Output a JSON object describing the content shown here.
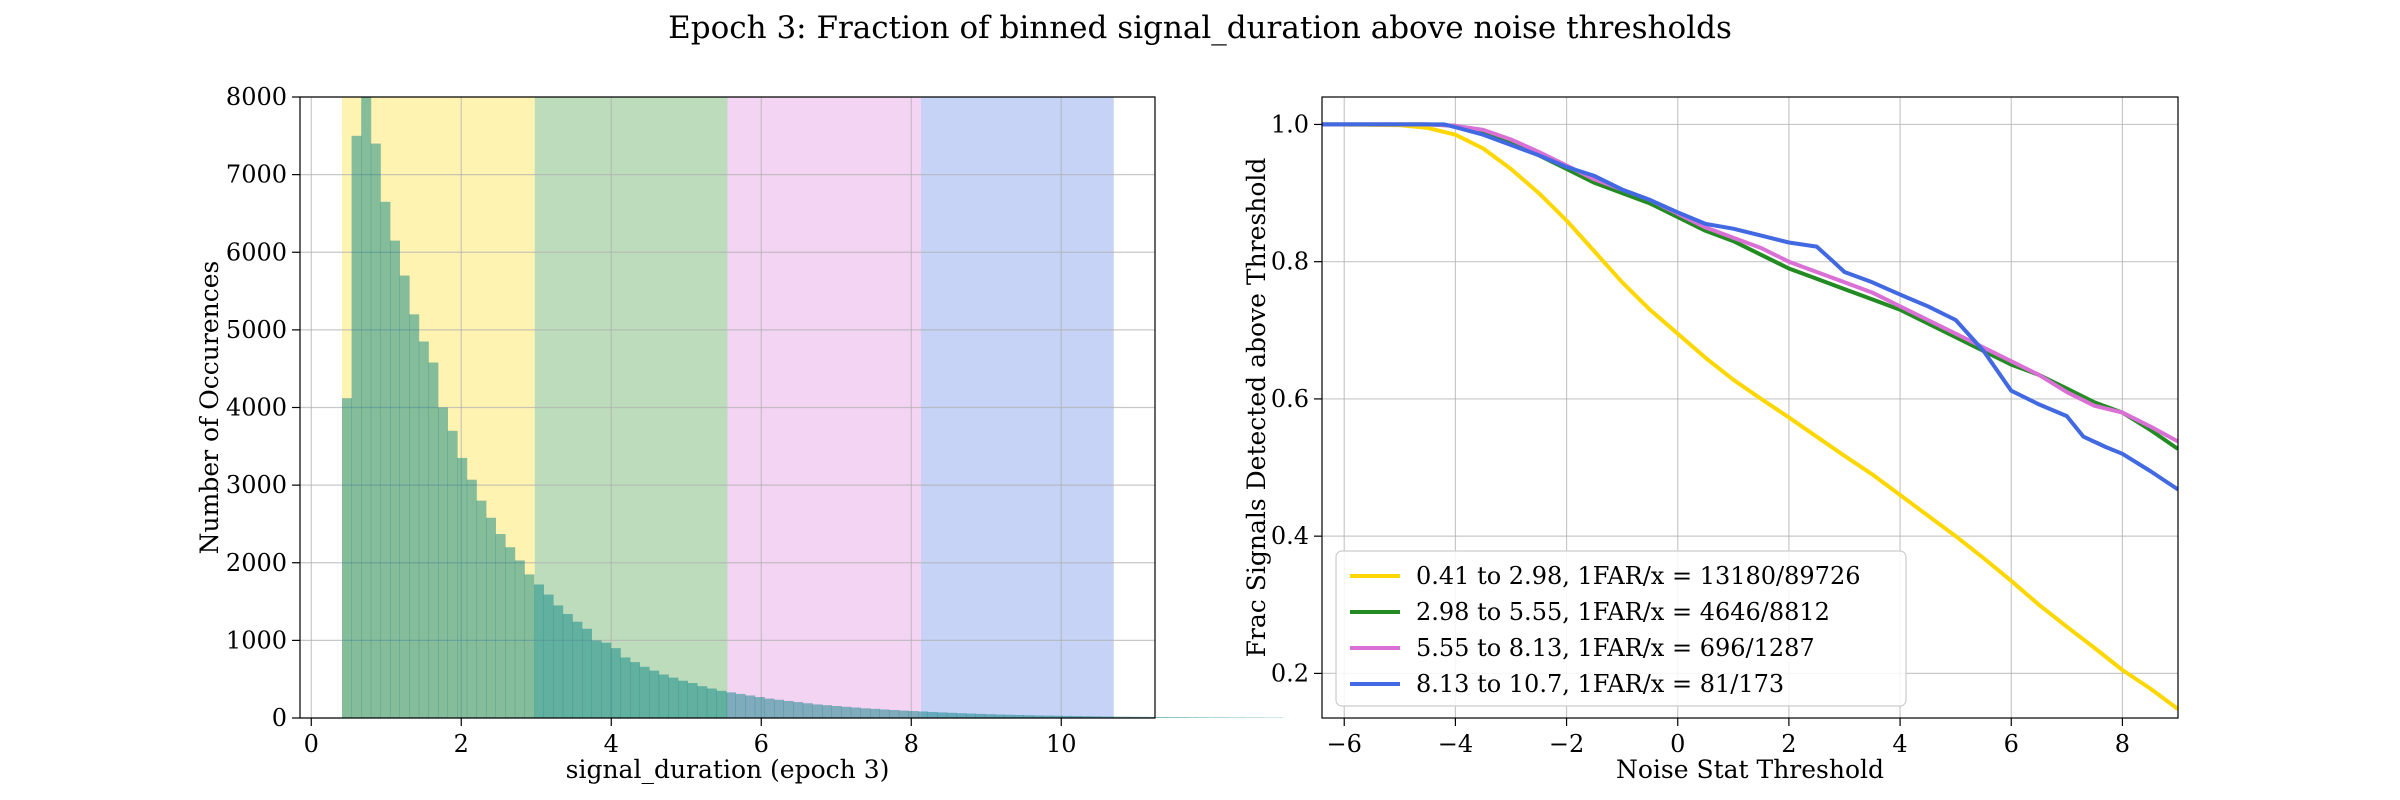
{
  "figure": {
    "title": "Epoch 3: Fraction of binned signal_duration above noise thresholds"
  },
  "chart_data": [
    {
      "type": "bar",
      "subtype": "histogram",
      "xlabel": "signal_duration (epoch 3)",
      "ylabel": "Number of Occurences",
      "xlim": [
        -0.15,
        11.25
      ],
      "ylim": [
        0,
        8000
      ],
      "xticks": [
        "0",
        "2",
        "4",
        "6",
        "8",
        "10"
      ],
      "yticks": [
        "0",
        "1000",
        "2000",
        "3000",
        "4000",
        "5000",
        "6000",
        "7000",
        "8000"
      ],
      "grid": true,
      "bins": {
        "start": 0.41,
        "width": 0.128,
        "counts": [
          4120,
          7500,
          8050,
          7400,
          6650,
          6150,
          5700,
          5200,
          4850,
          4580,
          4000,
          3700,
          3350,
          3070,
          2800,
          2580,
          2370,
          2200,
          2030,
          1850,
          1720,
          1590,
          1450,
          1340,
          1240,
          1150,
          1000,
          970,
          900,
          780,
          720,
          660,
          610,
          560,
          520,
          480,
          450,
          410,
          380,
          350,
          330,
          310,
          290,
          270,
          250,
          235,
          220,
          205,
          190,
          175,
          165,
          155,
          145,
          135,
          125,
          118,
          110,
          103,
          96,
          90,
          84,
          78,
          72,
          67,
          62,
          57,
          53,
          49,
          45,
          42,
          39,
          36,
          33,
          31,
          29,
          27,
          25,
          23,
          21,
          19,
          18,
          17,
          16,
          15,
          14,
          13,
          12,
          11,
          10,
          9,
          8,
          8,
          7,
          7,
          6,
          6,
          5,
          5
        ]
      },
      "bands": [
        {
          "from": 0.41,
          "to": 2.98,
          "color": "#ffd700"
        },
        {
          "from": 2.98,
          "to": 5.55,
          "color": "#228b22"
        },
        {
          "from": 5.55,
          "to": 8.13,
          "color": "#da70d6"
        },
        {
          "from": 8.13,
          "to": 10.7,
          "color": "#4169e1"
        }
      ]
    },
    {
      "type": "line",
      "xlabel": "Noise Stat Threshold",
      "ylabel": "Frac Signals Detected above Threshold",
      "xlim": [
        -6.4,
        9
      ],
      "ylim": [
        0.135,
        1.04
      ],
      "xticks": [
        -6,
        -4,
        -2,
        0,
        2,
        4,
        6,
        8
      ],
      "yticks": [
        "0.2",
        "0.4",
        "0.6",
        "0.8",
        "1.0"
      ],
      "grid": true,
      "legend_position": "lower-left",
      "series": [
        {
          "name": "0.41 to 2.98, 1FAR/x = 13180/89726",
          "color": "#ffd700",
          "points": [
            [
              -6.4,
              1.0
            ],
            [
              -5,
              0.999
            ],
            [
              -4.5,
              0.995
            ],
            [
              -4,
              0.985
            ],
            [
              -3.5,
              0.965
            ],
            [
              -3,
              0.935
            ],
            [
              -2.5,
              0.9
            ],
            [
              -2,
              0.86
            ],
            [
              -1.5,
              0.815
            ],
            [
              -1,
              0.77
            ],
            [
              -0.5,
              0.73
            ],
            [
              0,
              0.695
            ],
            [
              0.5,
              0.66
            ],
            [
              1,
              0.628
            ],
            [
              1.5,
              0.6
            ],
            [
              2,
              0.573
            ],
            [
              2.5,
              0.545
            ],
            [
              3,
              0.517
            ],
            [
              3.5,
              0.49
            ],
            [
              4,
              0.46
            ],
            [
              4.5,
              0.43
            ],
            [
              5,
              0.4
            ],
            [
              5.5,
              0.368
            ],
            [
              6,
              0.335
            ],
            [
              6.5,
              0.3
            ],
            [
              7,
              0.268
            ],
            [
              7.5,
              0.237
            ],
            [
              8,
              0.205
            ],
            [
              8.5,
              0.178
            ],
            [
              9,
              0.148
            ]
          ]
        },
        {
          "name": "2.98 to 5.55, 1FAR/x = 4646/8812",
          "color": "#228b22",
          "points": [
            [
              -6.4,
              1.0
            ],
            [
              -4.5,
              1.0
            ],
            [
              -4,
              0.998
            ],
            [
              -3.5,
              0.99
            ],
            [
              -3,
              0.975
            ],
            [
              -2.5,
              0.955
            ],
            [
              -2,
              0.935
            ],
            [
              -1.5,
              0.915
            ],
            [
              -1,
              0.9
            ],
            [
              -0.5,
              0.885
            ],
            [
              0,
              0.865
            ],
            [
              0.5,
              0.845
            ],
            [
              1,
              0.83
            ],
            [
              1.5,
              0.81
            ],
            [
              2,
              0.79
            ],
            [
              2.5,
              0.775
            ],
            [
              3,
              0.76
            ],
            [
              3.5,
              0.745
            ],
            [
              4,
              0.73
            ],
            [
              4.5,
              0.71
            ],
            [
              5,
              0.69
            ],
            [
              5.5,
              0.67
            ],
            [
              6,
              0.65
            ],
            [
              6.5,
              0.635
            ],
            [
              7,
              0.615
            ],
            [
              7.5,
              0.595
            ],
            [
              8,
              0.58
            ],
            [
              8.5,
              0.555
            ],
            [
              9,
              0.527
            ]
          ]
        },
        {
          "name": "5.55 to 8.13, 1FAR/x = 696/1287",
          "color": "#da70d6",
          "points": [
            [
              -6.4,
              1.0
            ],
            [
              -4.5,
              1.0
            ],
            [
              -4,
              0.998
            ],
            [
              -3.5,
              0.992
            ],
            [
              -3,
              0.978
            ],
            [
              -2.5,
              0.96
            ],
            [
              -2,
              0.94
            ],
            [
              -1.5,
              0.92
            ],
            [
              -1,
              0.905
            ],
            [
              -0.5,
              0.89
            ],
            [
              0,
              0.87
            ],
            [
              0.5,
              0.85
            ],
            [
              1,
              0.835
            ],
            [
              1.5,
              0.82
            ],
            [
              2,
              0.8
            ],
            [
              2.5,
              0.785
            ],
            [
              3,
              0.77
            ],
            [
              3.5,
              0.755
            ],
            [
              4,
              0.735
            ],
            [
              4.5,
              0.715
            ],
            [
              5,
              0.695
            ],
            [
              5.5,
              0.675
            ],
            [
              6,
              0.655
            ],
            [
              6.5,
              0.635
            ],
            [
              7,
              0.61
            ],
            [
              7.5,
              0.59
            ],
            [
              8,
              0.58
            ],
            [
              8.5,
              0.56
            ],
            [
              9,
              0.538
            ]
          ]
        },
        {
          "name": "8.13 to 10.7, 1FAR/x = 81/173",
          "color": "#4169e1",
          "points": [
            [
              -6.4,
              1.0
            ],
            [
              -4.2,
              1.0
            ],
            [
              -4,
              0.996
            ],
            [
              -3.5,
              0.985
            ],
            [
              -3,
              0.97
            ],
            [
              -2.5,
              0.955
            ],
            [
              -2,
              0.938
            ],
            [
              -1.5,
              0.925
            ],
            [
              -1,
              0.905
            ],
            [
              -0.5,
              0.89
            ],
            [
              0,
              0.872
            ],
            [
              0.5,
              0.855
            ],
            [
              1,
              0.848
            ],
            [
              1.5,
              0.838
            ],
            [
              2,
              0.828
            ],
            [
              2.5,
              0.822
            ],
            [
              2.8,
              0.8
            ],
            [
              3,
              0.785
            ],
            [
              3.5,
              0.77
            ],
            [
              4,
              0.752
            ],
            [
              4.5,
              0.735
            ],
            [
              5,
              0.715
            ],
            [
              5.5,
              0.67
            ],
            [
              6,
              0.612
            ],
            [
              6.5,
              0.592
            ],
            [
              7,
              0.575
            ],
            [
              7.3,
              0.545
            ],
            [
              7.7,
              0.53
            ],
            [
              8,
              0.52
            ],
            [
              8.5,
              0.495
            ],
            [
              9,
              0.468
            ]
          ]
        }
      ]
    }
  ]
}
